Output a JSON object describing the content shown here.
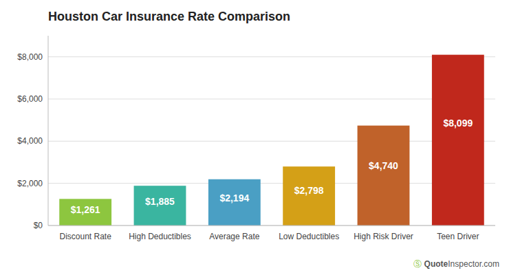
{
  "chart_data": {
    "type": "bar",
    "title": "Houston Car Insurance Rate Comparison",
    "categories": [
      "Discount Rate",
      "High Deductibles",
      "Average Rate",
      "Low Deductibles",
      "High Risk Driver",
      "Teen Driver"
    ],
    "values": [
      1261,
      1885,
      2194,
      2798,
      4740,
      8099
    ],
    "value_labels": [
      "$1,261",
      "$1,885",
      "$2,194",
      "$2,798",
      "$4,740",
      "$8,099"
    ],
    "colors": [
      "#8dc63f",
      "#3ab5a0",
      "#4a9fc4",
      "#d4a017",
      "#c0622a",
      "#c0281c"
    ],
    "ylim": [
      0,
      9000
    ],
    "yticks": [
      {
        "value": 0,
        "label": "$0"
      },
      {
        "value": 2000,
        "label": "$2,000"
      },
      {
        "value": 4000,
        "label": "$4,000"
      },
      {
        "value": 6000,
        "label": "$6,000"
      },
      {
        "value": 8000,
        "label": "$8,000"
      }
    ],
    "grid": true,
    "data_labels": true,
    "annotations": [
      "Ⓢ",
      "Quote",
      "Inspector",
      ".com"
    ]
  }
}
